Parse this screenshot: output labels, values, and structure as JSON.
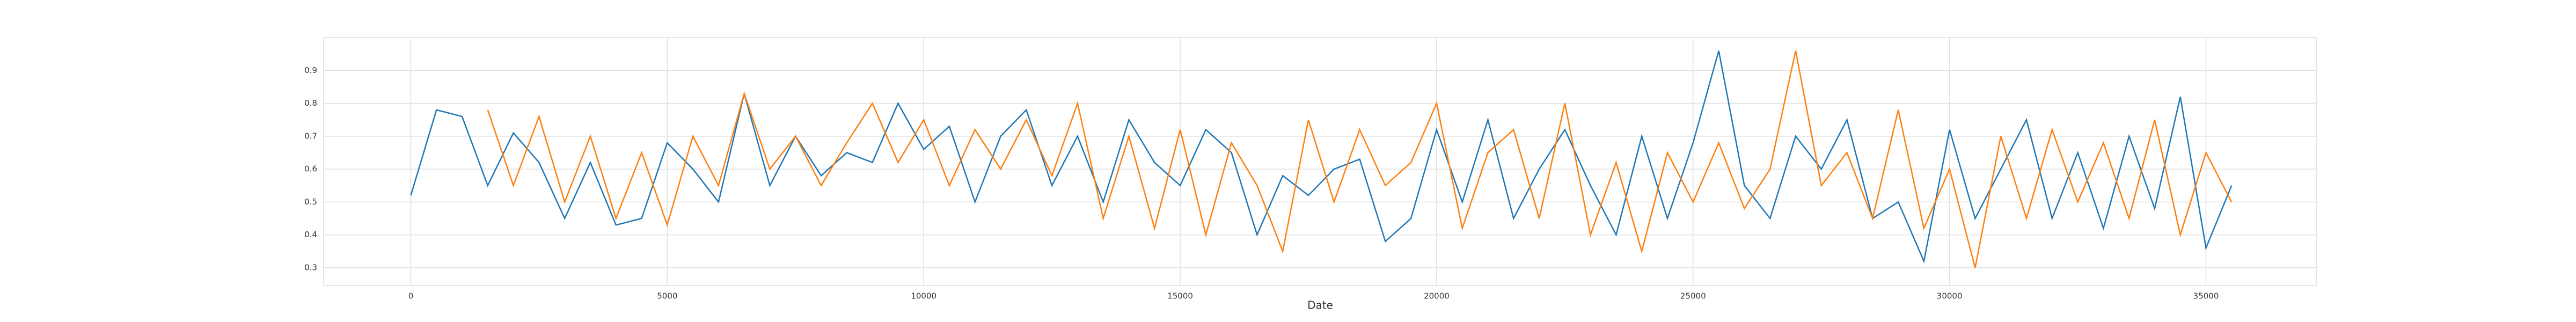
{
  "chart_data": {
    "type": "line",
    "xlabel": "Date",
    "x": [
      0,
      500,
      1000,
      1500,
      2000,
      2500,
      3000,
      3500,
      4000,
      4500,
      5000,
      5500,
      6000,
      6500,
      7000,
      7500,
      8000,
      8500,
      9000,
      9500,
      10000,
      10500,
      11000,
      11500,
      12000,
      12500,
      13000,
      13500,
      14000,
      14500,
      15000,
      15500,
      16000,
      16500,
      17000,
      17500,
      18000,
      18500,
      19000,
      19500,
      20000,
      20500,
      21000,
      21500,
      22000,
      22500,
      23000,
      23500,
      24000,
      24500,
      25000,
      25500,
      26000,
      26500,
      27000,
      27500,
      28000,
      28500,
      29000,
      29500,
      30000,
      30500,
      31000,
      31500,
      32000,
      32500,
      33000,
      33500,
      34000,
      34500,
      35000,
      35500
    ],
    "series": [
      {
        "color": "#1f77b4",
        "values": [
          0.52,
          0.78,
          0.76,
          0.55,
          0.71,
          0.62,
          0.45,
          0.62,
          0.43,
          0.45,
          0.68,
          0.6,
          0.5,
          0.83,
          0.55,
          0.7,
          0.58,
          0.65,
          0.62,
          0.8,
          0.66,
          0.73,
          0.5,
          0.7,
          0.78,
          0.55,
          0.7,
          0.5,
          0.75,
          0.62,
          0.55,
          0.72,
          0.65,
          0.4,
          0.58,
          0.52,
          0.6,
          0.63,
          0.38,
          0.45,
          0.72,
          0.5,
          0.75,
          0.45,
          0.6,
          0.72,
          0.55,
          0.4,
          0.7,
          0.45,
          0.68,
          0.96,
          0.55,
          0.45,
          0.7,
          0.6,
          0.75,
          0.45,
          0.5,
          0.32,
          0.72,
          0.45,
          0.6,
          0.75,
          0.45,
          0.65,
          0.42,
          0.7,
          0.48,
          0.82,
          0.36,
          0.55
        ]
      },
      {
        "color": "#ff7f0e",
        "values": [
          null,
          null,
          null,
          0.78,
          0.55,
          0.76,
          0.5,
          0.7,
          0.45,
          0.65,
          0.43,
          0.7,
          0.55,
          0.83,
          0.6,
          0.7,
          0.55,
          0.68,
          0.8,
          0.62,
          0.75,
          0.55,
          0.72,
          0.6,
          0.75,
          0.58,
          0.8,
          0.45,
          0.7,
          0.42,
          0.72,
          0.4,
          0.68,
          0.55,
          0.35,
          0.75,
          0.5,
          0.72,
          0.55,
          0.62,
          0.8,
          0.42,
          0.65,
          0.72,
          0.45,
          0.8,
          0.4,
          0.62,
          0.35,
          0.65,
          0.5,
          0.68,
          0.48,
          0.6,
          0.96,
          0.55,
          0.65,
          0.45,
          0.78,
          0.42,
          0.6,
          0.3,
          0.7,
          0.45,
          0.72,
          0.5,
          0.68,
          0.45,
          0.75,
          0.4,
          0.65,
          0.5
        ]
      }
    ],
    "xlim": [
      -1700,
      37150
    ],
    "xticks": [
      0,
      5000,
      10000,
      15000,
      20000,
      25000,
      30000,
      35000
    ],
    "ylim": [
      0.246,
      1.0
    ],
    "yticks": [
      0.3,
      0.4,
      0.5,
      0.6,
      0.7,
      0.8,
      0.9
    ],
    "grid": true
  }
}
